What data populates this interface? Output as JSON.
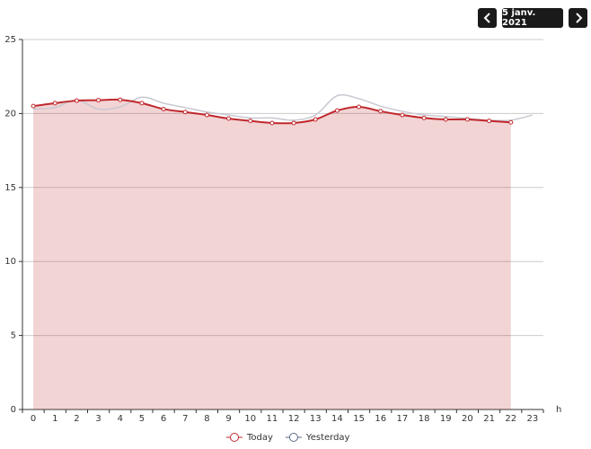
{
  "controls": {
    "date": "5 janv. 2021"
  },
  "chart_data": {
    "type": "line",
    "x_label": "h",
    "categories": [
      "0",
      "1",
      "2",
      "3",
      "4",
      "5",
      "6",
      "7",
      "8",
      "9",
      "10",
      "11",
      "12",
      "13",
      "14",
      "15",
      "16",
      "17",
      "18",
      "19",
      "20",
      "21",
      "22",
      "23"
    ],
    "series": [
      {
        "name": "Today",
        "color": "#c0282d",
        "area": true,
        "values": [
          20.5,
          20.7,
          20.87,
          20.9,
          20.93,
          20.7,
          20.3,
          20.1,
          19.9,
          19.66,
          19.5,
          19.36,
          19.36,
          19.6,
          20.2,
          20.45,
          20.15,
          19.9,
          19.7,
          19.6,
          19.6,
          19.5,
          19.4,
          null
        ]
      },
      {
        "name": "Yesterday",
        "color": "#c8c8d0",
        "area": false,
        "values": [
          20.3,
          20.4,
          20.9,
          20.3,
          20.45,
          21.1,
          20.7,
          20.4,
          20.1,
          19.9,
          19.7,
          19.7,
          19.55,
          19.9,
          21.2,
          21.0,
          20.5,
          20.15,
          19.9,
          19.8,
          19.66,
          19.55,
          19.55,
          19.9
        ]
      }
    ],
    "ylim": [
      0,
      25
    ],
    "yticks": [
      0,
      5,
      10,
      15,
      20,
      25
    ],
    "grid": true,
    "smooth": true
  }
}
